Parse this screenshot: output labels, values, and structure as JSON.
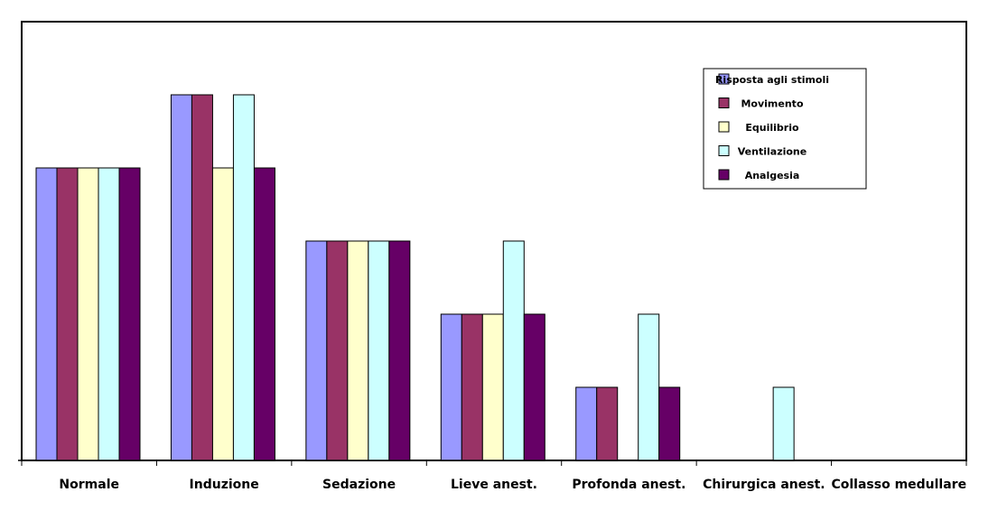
{
  "chart_data": {
    "type": "bar",
    "title": "",
    "xlabel": "",
    "ylabel": "",
    "categories": [
      "Normale",
      "Induzione",
      "Sedazione",
      "Lieve anest.",
      "Profonda anest.",
      "Chirurgica anest.",
      "Collasso medullare"
    ],
    "series": [
      {
        "name": "Risposta agli stimoli",
        "color": "#9999ff",
        "values": [
          4,
          5,
          3,
          2,
          1,
          0,
          0
        ]
      },
      {
        "name": "Movimento",
        "color": "#993366",
        "values": [
          4,
          5,
          3,
          2,
          1,
          0,
          0
        ]
      },
      {
        "name": "Equilibrio",
        "color": "#ffffcc",
        "values": [
          4,
          4,
          3,
          2,
          0,
          0,
          0
        ]
      },
      {
        "name": "Ventilazione",
        "color": "#ccffff",
        "values": [
          4,
          5,
          3,
          3,
          2,
          1,
          0
        ]
      },
      {
        "name": "Analgesia",
        "color": "#660066",
        "values": [
          4,
          4,
          3,
          2,
          1,
          0,
          0
        ]
      }
    ],
    "ylim": [
      0,
      5
    ],
    "grid": false,
    "legend": "top-right"
  }
}
